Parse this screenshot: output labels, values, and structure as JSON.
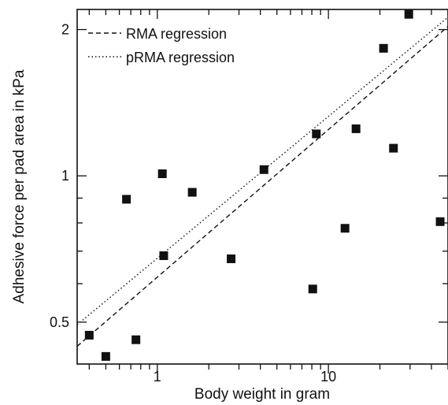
{
  "chart_data": {
    "type": "scatter",
    "title": "",
    "xlabel": "Body weight in gram",
    "ylabel": "Adhesive force per pad area in kPa",
    "xscale": "log",
    "yscale": "log",
    "xlim": [
      0.34,
      50
    ],
    "ylim": [
      0.41,
      2.2
    ],
    "xticks": [
      {
        "value": 1,
        "label": "1"
      },
      {
        "value": 10,
        "label": "10"
      }
    ],
    "yticks": [
      {
        "value": 0.5,
        "label": "0.5"
      },
      {
        "value": 1,
        "label": "1"
      },
      {
        "value": 2,
        "label": "2"
      }
    ],
    "grid": false,
    "legend_position": "top-left",
    "points": [
      {
        "x": 0.4,
        "y": 0.47
      },
      {
        "x": 0.5,
        "y": 0.425
      },
      {
        "x": 0.66,
        "y": 0.895
      },
      {
        "x": 0.75,
        "y": 0.46
      },
      {
        "x": 1.07,
        "y": 1.01
      },
      {
        "x": 1.09,
        "y": 0.685
      },
      {
        "x": 1.6,
        "y": 0.925
      },
      {
        "x": 2.7,
        "y": 0.675
      },
      {
        "x": 4.2,
        "y": 1.03
      },
      {
        "x": 8.1,
        "y": 0.585
      },
      {
        "x": 8.5,
        "y": 1.22
      },
      {
        "x": 12.5,
        "y": 0.78
      },
      {
        "x": 14.5,
        "y": 1.25
      },
      {
        "x": 21,
        "y": 1.83
      },
      {
        "x": 24,
        "y": 1.14
      },
      {
        "x": 29.5,
        "y": 2.15
      },
      {
        "x": 45,
        "y": 0.805
      }
    ],
    "series": [
      {
        "name": "RMA regression",
        "style": "dashed",
        "x": [
          0.34,
          50
        ],
        "y": [
          0.446,
          2.03
        ]
      },
      {
        "name": "pRMA regression",
        "style": "dotted",
        "x": [
          0.34,
          50
        ],
        "y": [
          0.494,
          2.12
        ]
      }
    ]
  }
}
